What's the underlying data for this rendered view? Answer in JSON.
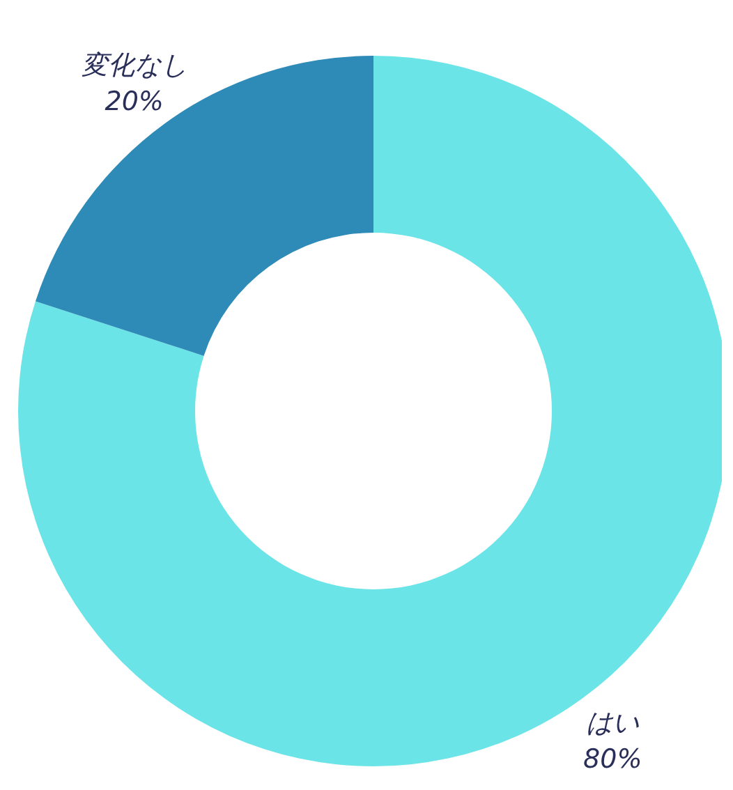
{
  "chart_data": {
    "type": "donut",
    "categories": [
      "はい",
      "変化なし"
    ],
    "values": [
      80,
      20
    ],
    "value_labels": [
      "80%",
      "20%"
    ],
    "colors": [
      "#6be4e8",
      "#2e8bb8"
    ]
  }
}
